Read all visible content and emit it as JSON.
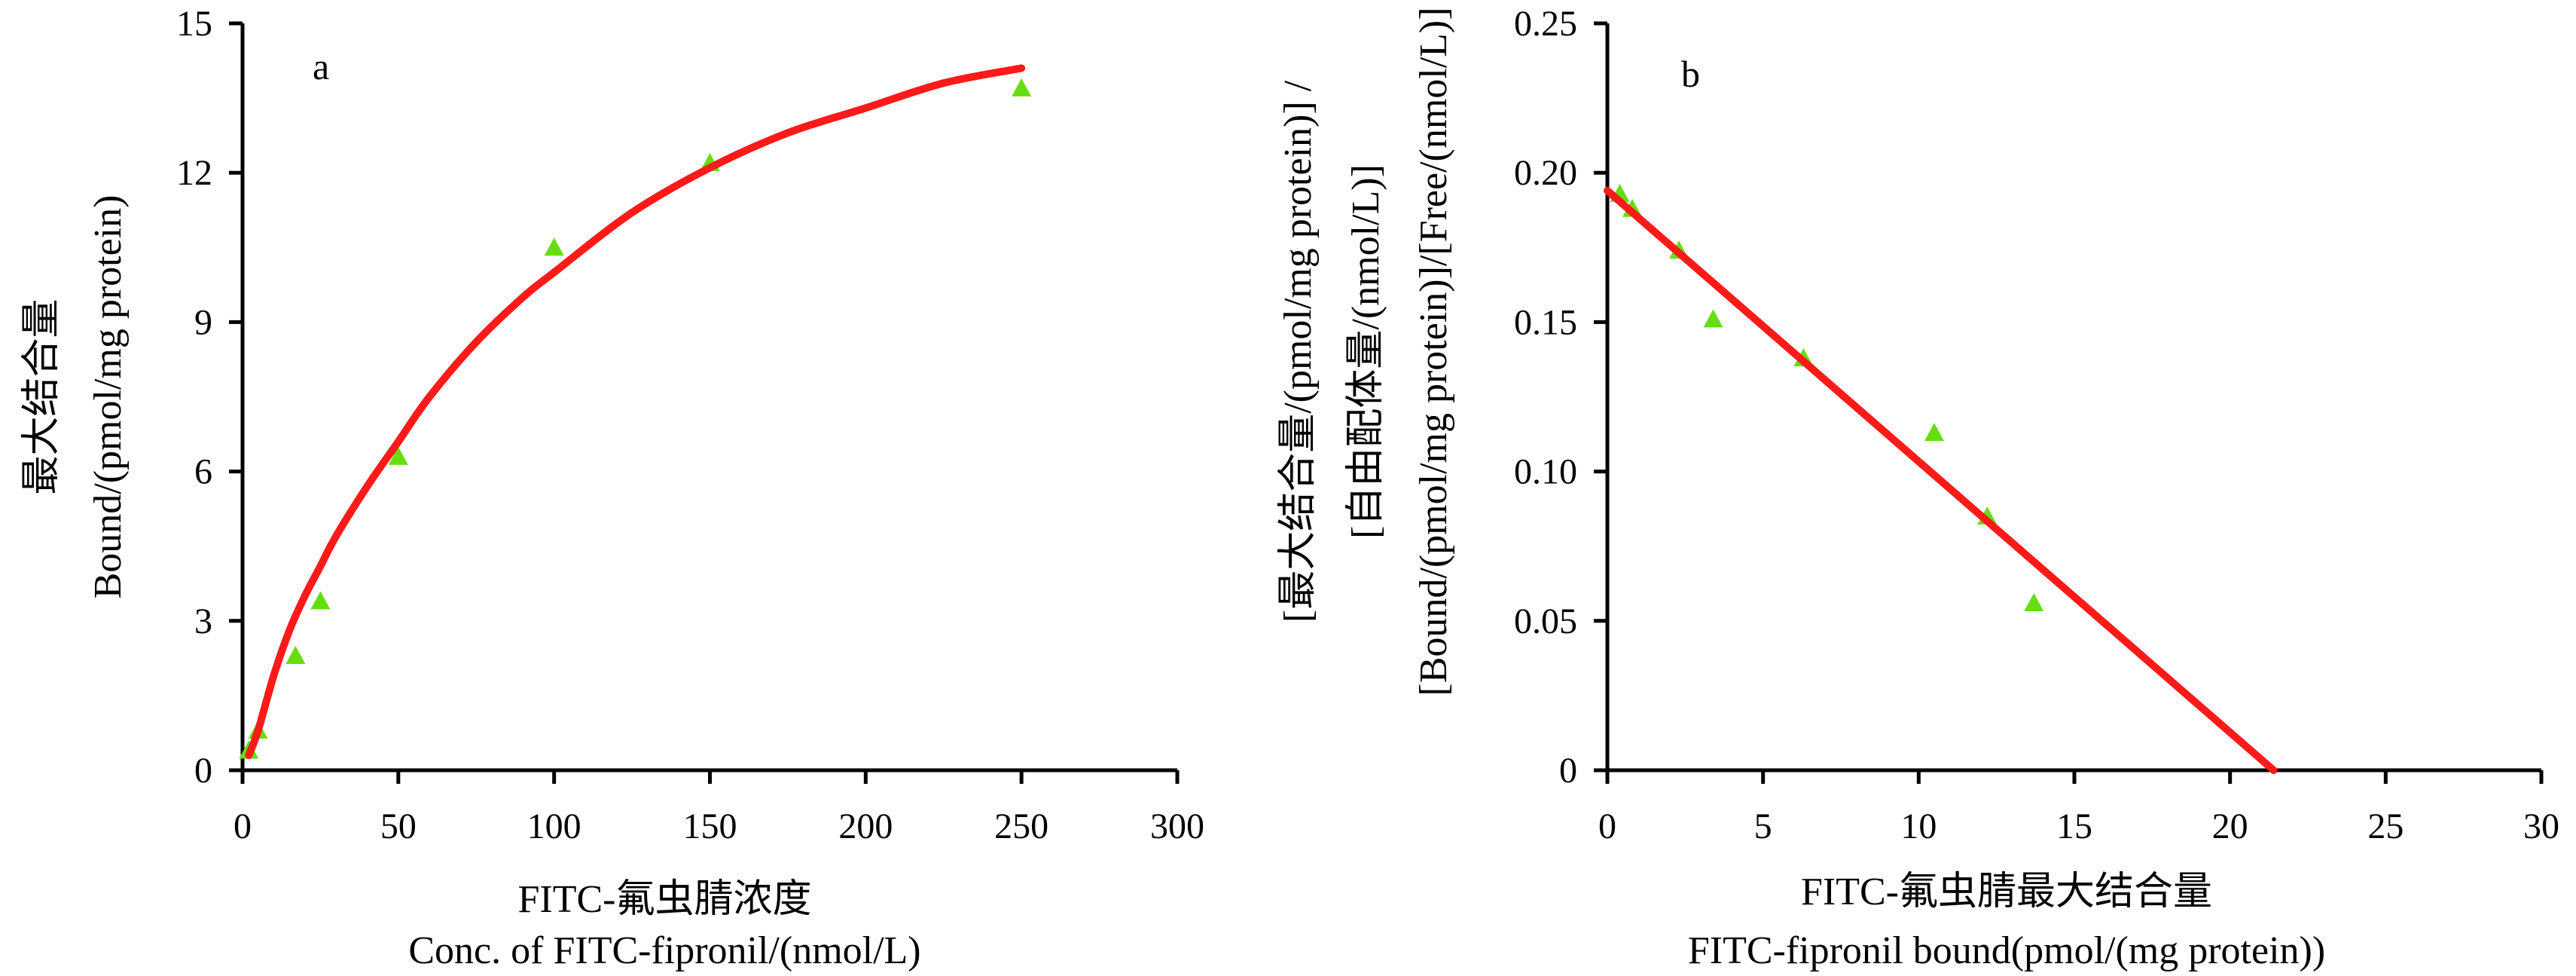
{
  "chart_data": [
    {
      "type": "scatter",
      "panel_label": "a",
      "title": "",
      "xlabel_lines": [
        "FITC-氟虫腈浓度",
        "Conc. of FITC-fipronil/(nmol/L)"
      ],
      "ylabel_lines": [
        "最大结合量",
        "Bound/(pmol/mg protein)"
      ],
      "xlim": [
        0,
        300
      ],
      "ylim": [
        0,
        15
      ],
      "xticks": [
        "0",
        "50",
        "100",
        "150",
        "200",
        "250",
        "300"
      ],
      "yticks": [
        "0",
        "3",
        "6",
        "9",
        "12",
        "15"
      ],
      "grid": false,
      "series": [
        {
          "name": "measured",
          "kind": "points",
          "marker": "triangle",
          "color": "#66dd11",
          "x": [
            2,
            5,
            17,
            25,
            50,
            100,
            150,
            250
          ],
          "y": [
            0.4,
            0.8,
            2.3,
            3.4,
            6.3,
            10.5,
            12.2,
            13.7
          ]
        },
        {
          "name": "fit",
          "kind": "line",
          "color": "#ff1a1a",
          "x": [
            2,
            5,
            10,
            15,
            20,
            25,
            30,
            40,
            50,
            60,
            75,
            90,
            100,
            125,
            150,
            175,
            200,
            225,
            250
          ],
          "y": [
            0.3,
            0.8,
            1.9,
            2.8,
            3.5,
            4.1,
            4.7,
            5.7,
            6.6,
            7.5,
            8.6,
            9.5,
            10.0,
            11.2,
            12.1,
            12.8,
            13.3,
            13.8,
            14.1
          ]
        }
      ]
    },
    {
      "type": "scatter",
      "panel_label": "b",
      "title": "",
      "xlabel_lines": [
        "FITC-氟虫腈最大结合量",
        "FITC-fipronil bound(pmol/(mg protein))"
      ],
      "ylabel_lines": [
        "[最大结合量/(pmol/mg protein)] /",
        "[自由配体量/(nmol/L)]",
        "[Bound/(pmol/mg protein)]/[Free/(nmol/L)]"
      ],
      "xlim": [
        0,
        30
      ],
      "ylim": [
        0,
        0.25
      ],
      "xticks": [
        "0",
        "5",
        "10",
        "15",
        "20",
        "25",
        "30"
      ],
      "yticks": [
        "0",
        "0.05",
        "0.10",
        "0.15",
        "0.20",
        "0.25"
      ],
      "grid": false,
      "series": [
        {
          "name": "measured",
          "kind": "points",
          "marker": "triangle",
          "color": "#66dd11",
          "x": [
            0.4,
            0.8,
            2.3,
            3.4,
            6.3,
            10.5,
            12.2,
            13.7
          ],
          "y": [
            0.193,
            0.188,
            0.174,
            0.151,
            0.138,
            0.113,
            0.085,
            0.056
          ]
        },
        {
          "name": "fit",
          "kind": "line",
          "color": "#ff1a1a",
          "x": [
            0,
            21.4
          ],
          "y": [
            0.194,
            0
          ]
        }
      ]
    }
  ]
}
